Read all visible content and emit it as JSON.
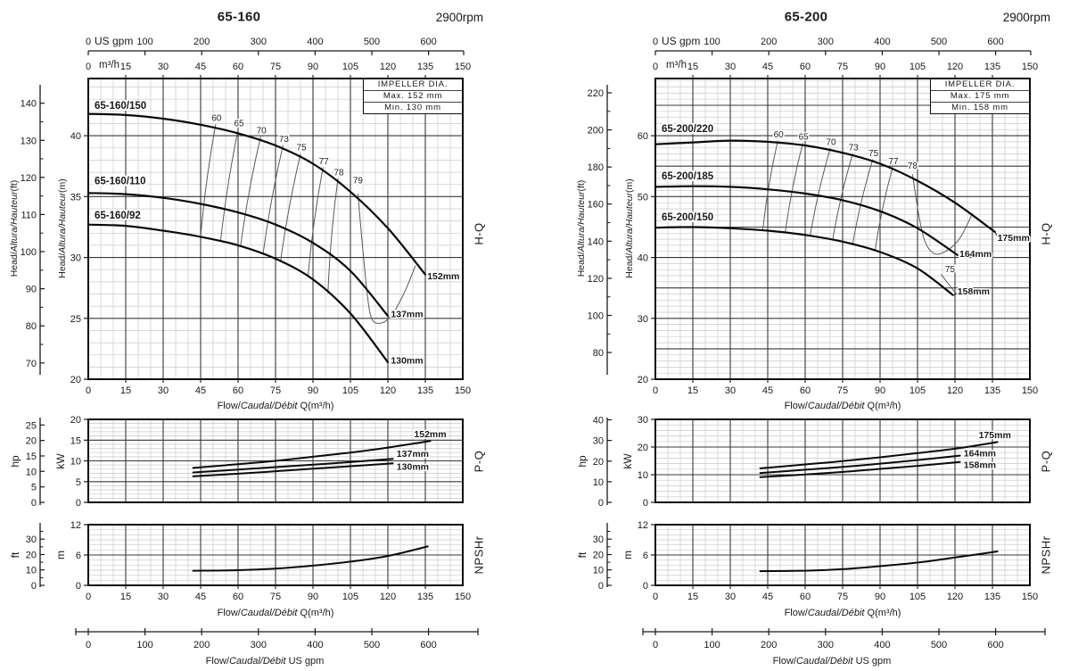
{
  "page_bg": "#ffffff",
  "colors": {
    "ink": "#1a1a1a",
    "curve": "#0a0a0a",
    "grid_major": "#383838",
    "grid_minor": "#c9c9c9",
    "eff_line": "#5a5a5a",
    "eff_text": "#222222"
  },
  "labels": {
    "us_gpm": "US gpm",
    "m3h": "m³/h",
    "head_prefix": "Head/",
    "head_italic": "Altura/Hauteur",
    "ft_suffix": "(ft)",
    "m_suffix": "(m)",
    "flow_prefix": "Flow/",
    "flow_italic": "Caudal/Débit",
    "flow_q_suffix": " Q(m³/h)",
    "flow_gpm_suffix": "  US gpm",
    "hq_side": "H-Q",
    "pq_side": "P-Q",
    "npsh_side": "NPSHr",
    "hp_unit": "hp",
    "kw_unit": "kW",
    "ft_unit": "ft",
    "m_unit": "m"
  },
  "axes": {
    "gpm_ticks": [
      0,
      100,
      200,
      300,
      400,
      500,
      600
    ],
    "q_ticks": [
      0,
      15,
      30,
      45,
      60,
      75,
      90,
      105,
      120,
      135,
      150
    ]
  },
  "chart_data": [
    {
      "title": "65-160",
      "rpm": "2900rpm",
      "impeller": {
        "title": "IMPELLER DIA.",
        "max": "Max. 152 mm",
        "min": "Min. 130 mm"
      },
      "hq": {
        "type": "line",
        "x_unit": "m³/h",
        "ylim_m": [
          20,
          44.7
        ],
        "m_tick_labels": [
          20,
          25,
          30,
          35,
          40
        ],
        "ft_tick_labels": [
          70,
          80,
          90,
          100,
          110,
          120,
          130,
          140
        ],
        "series": [
          {
            "name": "65-160/150",
            "dia": "152mm",
            "label_xy": [
              2.5,
              42.2
            ],
            "dia_label_xy": [
              135.8,
              28.2
            ],
            "points": [
              [
                0,
                41.8
              ],
              [
                15,
                41.7
              ],
              [
                30,
                41.4
              ],
              [
                45,
                40.9
              ],
              [
                60,
                40.2
              ],
              [
                75,
                39.2
              ],
              [
                90,
                37.7
              ],
              [
                105,
                35.4
              ],
              [
                120,
                32.4
              ],
              [
                135,
                28.6
              ]
            ]
          },
          {
            "name": "65-160/110",
            "dia": "137mm",
            "label_xy": [
              2.5,
              36.0
            ],
            "dia_label_xy": [
              121.2,
              25.1
            ],
            "points": [
              [
                0,
                35.3
              ],
              [
                15,
                35.2
              ],
              [
                30,
                34.9
              ],
              [
                45,
                34.4
              ],
              [
                60,
                33.7
              ],
              [
                75,
                32.7
              ],
              [
                90,
                31.2
              ],
              [
                105,
                28.9
              ],
              [
                120,
                25.2
              ]
            ]
          },
          {
            "name": "65-160/92",
            "dia": "130mm",
            "label_xy": [
              2.5,
              33.2
            ],
            "dia_label_xy": [
              121.2,
              21.3
            ],
            "points": [
              [
                0,
                32.7
              ],
              [
                15,
                32.6
              ],
              [
                30,
                32.2
              ],
              [
                45,
                31.7
              ],
              [
                60,
                31.0
              ],
              [
                75,
                29.9
              ],
              [
                90,
                28.2
              ],
              [
                105,
                25.4
              ],
              [
                120,
                21.4
              ]
            ]
          }
        ],
        "efficiency": [
          {
            "label": "60",
            "top_x": 51,
            "bot_x": 45
          },
          {
            "label": "65",
            "top_x": 60,
            "bot_x": 53
          },
          {
            "label": "70",
            "top_x": 69,
            "bot_x": 61
          },
          {
            "label": "73",
            "top_x": 78,
            "bot_x": 70
          },
          {
            "label": "75",
            "top_x": 85,
            "bot_x": 77
          },
          {
            "label": "77",
            "top_x": 94,
            "bot_x": 88
          },
          {
            "label": "78",
            "top_x": 100,
            "bot_x": 96
          }
        ],
        "eff_loop": {
          "label": "79",
          "label_xy": [
            108,
            36.1
          ],
          "points": [
            [
              108,
              35.2
            ],
            [
              110.5,
              29.5
            ],
            [
              113,
              25.3
            ],
            [
              117,
              24.6
            ],
            [
              122,
              25.4
            ],
            [
              127,
              27.3
            ],
            [
              131,
              29.3
            ]
          ]
        }
      },
      "pq": {
        "type": "line",
        "kw_ticks": [
          0,
          5,
          10,
          15,
          20
        ],
        "hp_ticks": [
          0,
          5,
          10,
          15,
          20,
          25
        ],
        "kw_minor_step": 1,
        "series": [
          {
            "dia": "152mm",
            "label_xy": [
              130.5,
              15.7
            ],
            "points": [
              [
                42,
                8.3
              ],
              [
                60,
                9.2
              ],
              [
                75,
                10.0
              ],
              [
                90,
                11.0
              ],
              [
                105,
                12.0
              ],
              [
                120,
                13.2
              ],
              [
                137,
                14.8
              ]
            ]
          },
          {
            "dia": "137mm",
            "label_xy": [
              123.5,
              11.0
            ],
            "points": [
              [
                42,
                7.2
              ],
              [
                60,
                7.9
              ],
              [
                75,
                8.5
              ],
              [
                90,
                9.1
              ],
              [
                105,
                9.7
              ],
              [
                122,
                10.5
              ]
            ]
          },
          {
            "dia": "130mm",
            "label_xy": [
              123.5,
              7.9
            ],
            "points": [
              [
                42,
                6.3
              ],
              [
                60,
                6.9
              ],
              [
                75,
                7.5
              ],
              [
                90,
                8.1
              ],
              [
                105,
                8.7
              ],
              [
                122,
                9.4
              ]
            ]
          }
        ]
      },
      "npsh": {
        "type": "line",
        "m_ticks": [
          0,
          6,
          12
        ],
        "ft_ticks": [
          0,
          10,
          20,
          30
        ],
        "points": [
          [
            42,
            2.9
          ],
          [
            60,
            3.0
          ],
          [
            75,
            3.3
          ],
          [
            90,
            3.9
          ],
          [
            105,
            4.7
          ],
          [
            120,
            5.8
          ],
          [
            136,
            7.7
          ]
        ]
      }
    },
    {
      "title": "65-200",
      "rpm": "2900rpm",
      "impeller": {
        "title": "IMPELLER DIA.",
        "max": "Max. 175 mm",
        "min": "Min. 158 mm"
      },
      "hq": {
        "type": "line",
        "x_unit": "m³/h",
        "ylim_m": [
          20,
          69.4
        ],
        "m_tick_labels": [
          20,
          30,
          40,
          50,
          60
        ],
        "ft_tick_labels": [
          80,
          100,
          120,
          140,
          160,
          180,
          200,
          220
        ],
        "series": [
          {
            "name": "65-200/220",
            "dia": "175mm",
            "label_xy": [
              2.5,
              60.6
            ],
            "dia_label_xy": [
              137.0,
              42.7
            ],
            "leader": [
              [
                136,
                44.2
              ],
              [
                137.2,
                43.3
              ]
            ],
            "points": [
              [
                0,
                58.6
              ],
              [
                15,
                58.9
              ],
              [
                30,
                59.2
              ],
              [
                45,
                59.0
              ],
              [
                60,
                58.4
              ],
              [
                75,
                57.2
              ],
              [
                90,
                55.4
              ],
              [
                105,
                52.6
              ],
              [
                120,
                49.0
              ],
              [
                136,
                44.2
              ]
            ]
          },
          {
            "name": "65-200/185",
            "dia": "164mm",
            "label_xy": [
              2.5,
              52.8
            ],
            "dia_label_xy": [
              121.8,
              40.1
            ],
            "points": [
              [
                0,
                51.6
              ],
              [
                15,
                51.7
              ],
              [
                30,
                51.6
              ],
              [
                45,
                51.2
              ],
              [
                60,
                50.5
              ],
              [
                75,
                49.4
              ],
              [
                90,
                47.6
              ],
              [
                105,
                44.8
              ],
              [
                121,
                40.4
              ]
            ]
          },
          {
            "name": "65-200/150",
            "dia": "158mm",
            "label_xy": [
              2.5,
              46.1
            ],
            "dia_label_xy": [
              121.0,
              33.9
            ],
            "leader": [
              [
                119,
                33.7
              ],
              [
                120.8,
                34.1
              ]
            ],
            "points": [
              [
                0,
                44.9
              ],
              [
                15,
                45.0
              ],
              [
                30,
                44.8
              ],
              [
                45,
                44.4
              ],
              [
                60,
                43.7
              ],
              [
                75,
                42.6
              ],
              [
                90,
                40.9
              ],
              [
                105,
                38.2
              ],
              [
                119,
                33.9
              ]
            ]
          }
        ],
        "efficiency": [
          {
            "label": "60",
            "top_x": 49,
            "bot_x": 43
          },
          {
            "label": "65",
            "top_x": 59,
            "bot_x": 52
          },
          {
            "label": "70",
            "top_x": 70,
            "bot_x": 62
          },
          {
            "label": "73",
            "top_x": 79,
            "bot_x": 71
          },
          {
            "label": "75",
            "top_x": 87,
            "bot_x": 79
          },
          {
            "label": "77",
            "top_x": 95,
            "bot_x": 88
          }
        ],
        "eff_loop": {
          "label": "78",
          "label_xy": [
            103,
            54.6
          ],
          "points": [
            [
              103,
              53.6
            ],
            [
              105.5,
              47.0
            ],
            [
              108,
              42.6
            ],
            [
              112,
              40.6
            ],
            [
              117,
              41.2
            ],
            [
              122,
              43.2
            ],
            [
              127,
              47.2
            ]
          ]
        },
        "eff_extra": {
          "label": "75",
          "label_xy": [
            118,
            37.6
          ],
          "points": [
            [
              114.5,
              37.2
            ],
            [
              120.5,
              34.0
            ]
          ]
        }
      },
      "pq": {
        "type": "line",
        "kw_ticks": [
          0,
          10,
          20,
          30
        ],
        "hp_ticks": [
          0,
          10,
          20,
          30,
          40
        ],
        "kw_minor_step": 2,
        "series": [
          {
            "dia": "175mm",
            "label_xy": [
              129.5,
              23.2
            ],
            "points": [
              [
                42,
                12.3
              ],
              [
                60,
                13.7
              ],
              [
                75,
                14.9
              ],
              [
                90,
                16.3
              ],
              [
                105,
                17.8
              ],
              [
                120,
                19.4
              ],
              [
                137,
                21.8
              ]
            ]
          },
          {
            "dia": "164mm",
            "label_xy": [
              123.5,
              16.6
            ],
            "points": [
              [
                42,
                10.6
              ],
              [
                60,
                11.8
              ],
              [
                75,
                12.8
              ],
              [
                90,
                14.0
              ],
              [
                105,
                15.3
              ],
              [
                122,
                16.9
              ]
            ]
          },
          {
            "dia": "158mm",
            "label_xy": [
              123.5,
              12.4
            ],
            "points": [
              [
                42,
                9.1
              ],
              [
                60,
                10.1
              ],
              [
                75,
                11.0
              ],
              [
                90,
                12.1
              ],
              [
                105,
                13.2
              ],
              [
                122,
                14.6
              ]
            ]
          }
        ]
      },
      "npsh": {
        "type": "line",
        "m_ticks": [
          0,
          6,
          12
        ],
        "ft_ticks": [
          0,
          10,
          20,
          30
        ],
        "points": [
          [
            42,
            2.8
          ],
          [
            60,
            2.9
          ],
          [
            75,
            3.2
          ],
          [
            90,
            3.8
          ],
          [
            105,
            4.5
          ],
          [
            120,
            5.5
          ],
          [
            137,
            6.7
          ]
        ]
      }
    }
  ]
}
